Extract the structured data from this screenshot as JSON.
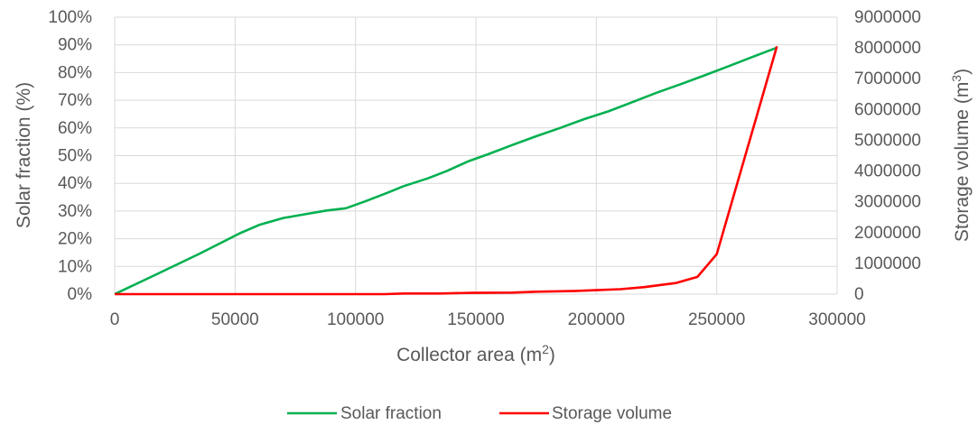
{
  "chart_data": {
    "type": "line",
    "xlabel": {
      "main": "Collector area (m",
      "sup": "2",
      "end": ")"
    },
    "y1label": "Solar fraction (%)",
    "y2label": {
      "main": "Storage volume (m",
      "sup": "3",
      "end": ")"
    },
    "xlim": [
      0,
      300000
    ],
    "x_ticks": [
      "0",
      "50000",
      "100000",
      "150000",
      "200000",
      "250000",
      "300000"
    ],
    "y1lim": [
      0,
      100
    ],
    "y1_ticks": [
      "0%",
      "10%",
      "20%",
      "30%",
      "40%",
      "50%",
      "60%",
      "70%",
      "80%",
      "90%",
      "100%"
    ],
    "y2lim": [
      0,
      9000000
    ],
    "y2_ticks": [
      "0",
      "1000000",
      "2000000",
      "3000000",
      "4000000",
      "5000000",
      "6000000",
      "7000000",
      "8000000",
      "9000000"
    ],
    "grid": true,
    "legend_position": "bottom-center",
    "series": [
      {
        "name": "Solar fraction",
        "axis": "left",
        "color": "#00B050",
        "points": [
          [
            0,
            0
          ],
          [
            17000,
            7
          ],
          [
            35000,
            14.5
          ],
          [
            52000,
            22
          ],
          [
            60000,
            25
          ],
          [
            70000,
            27.5
          ],
          [
            80000,
            29
          ],
          [
            88000,
            30.2
          ],
          [
            96000,
            31
          ],
          [
            104000,
            33.5
          ],
          [
            113000,
            36.5
          ],
          [
            120000,
            39
          ],
          [
            130000,
            41.8
          ],
          [
            138000,
            44.5
          ],
          [
            147000,
            48
          ],
          [
            155000,
            50.5
          ],
          [
            165000,
            53.8
          ],
          [
            175000,
            57
          ],
          [
            185000,
            60
          ],
          [
            195000,
            63.2
          ],
          [
            205000,
            66
          ],
          [
            215000,
            69.3
          ],
          [
            225000,
            72.7
          ],
          [
            235000,
            75.8
          ],
          [
            245000,
            79
          ],
          [
            255000,
            82.3
          ],
          [
            265000,
            85.7
          ],
          [
            275000,
            89
          ]
        ]
      },
      {
        "name": "Storage volume",
        "axis": "right",
        "color": "#FF0000",
        "points": [
          [
            0,
            0
          ],
          [
            100000,
            0
          ],
          [
            112000,
            0
          ],
          [
            120000,
            20000
          ],
          [
            135000,
            20000
          ],
          [
            148000,
            40000
          ],
          [
            165000,
            50000
          ],
          [
            175000,
            80000
          ],
          [
            190000,
            100000
          ],
          [
            200000,
            130000
          ],
          [
            210000,
            160000
          ],
          [
            220000,
            230000
          ],
          [
            225000,
            280000
          ],
          [
            233000,
            360000
          ],
          [
            242000,
            560000
          ],
          [
            250000,
            1300000
          ],
          [
            275000,
            8050000
          ]
        ]
      }
    ]
  }
}
